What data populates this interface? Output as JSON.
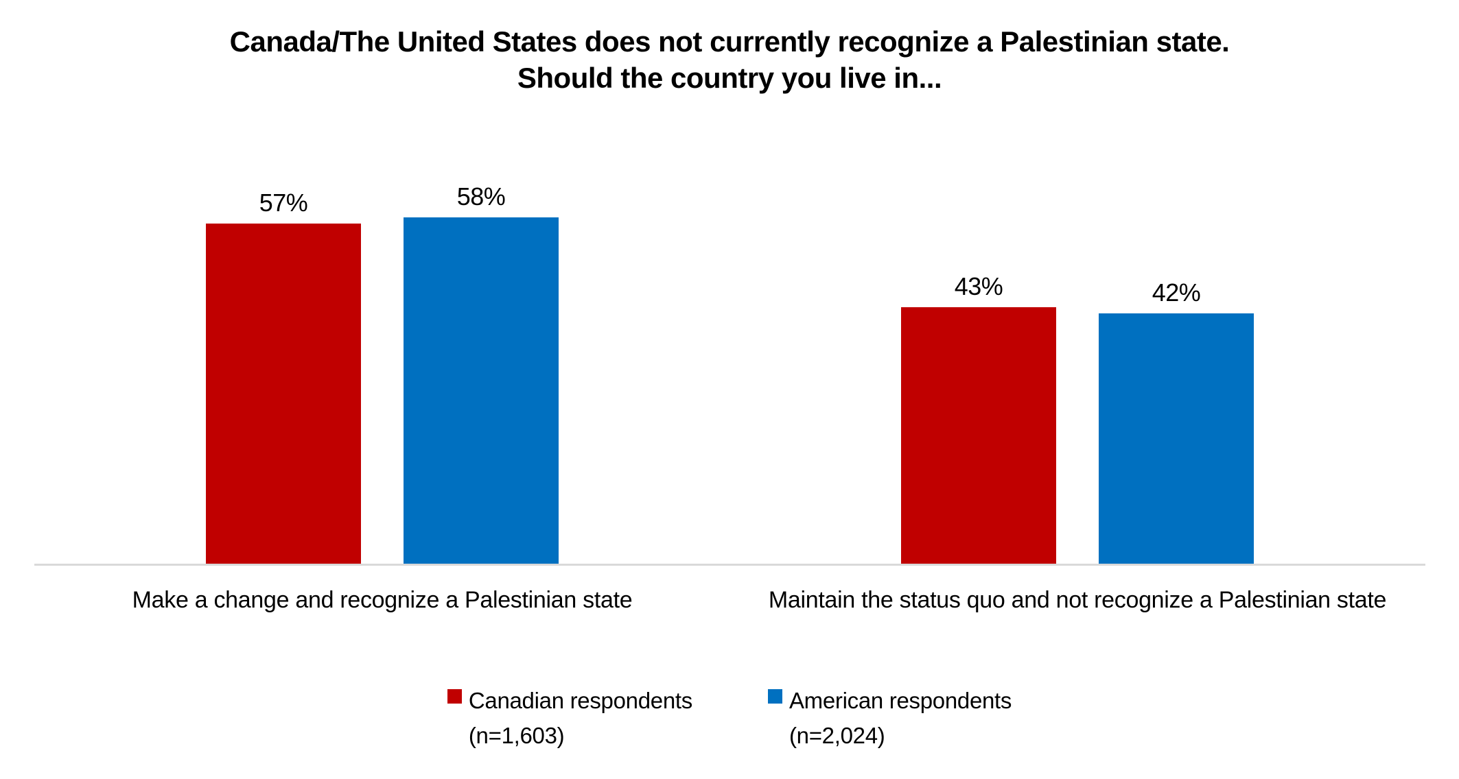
{
  "title": {
    "line1": "Canada/The United States does not currently recognize a Palestinian state.",
    "line2": "Should the country you live in..."
  },
  "chart_data": {
    "type": "bar",
    "title": "Canada/The United States does not currently recognize a Palestinian state. Should the country you live in...",
    "categories": [
      "Make a change and recognize a Palestinian state",
      "Maintain the status quo and not recognize a Palestinian state"
    ],
    "series": [
      {
        "name": "Canadian respondents (n=1,603)",
        "legend_label": "Canadian respondents",
        "legend_sub": "(n=1,603)",
        "color": "#c00000",
        "values": [
          57,
          43
        ],
        "labels": [
          "57%",
          "43%"
        ]
      },
      {
        "name": "American respondents (n=2,024)",
        "legend_label": "American respondents",
        "legend_sub": "(n=2,024)",
        "color": "#0070c0",
        "values": [
          58,
          42
        ],
        "labels": [
          "58%",
          "42%"
        ]
      }
    ],
    "unit": "percent",
    "grid": false,
    "y_axis_visible": false,
    "legend_position": "bottom",
    "baseline_color": "#d9d9d9",
    "background_color": "#ffffff",
    "text_color": "#000000"
  }
}
